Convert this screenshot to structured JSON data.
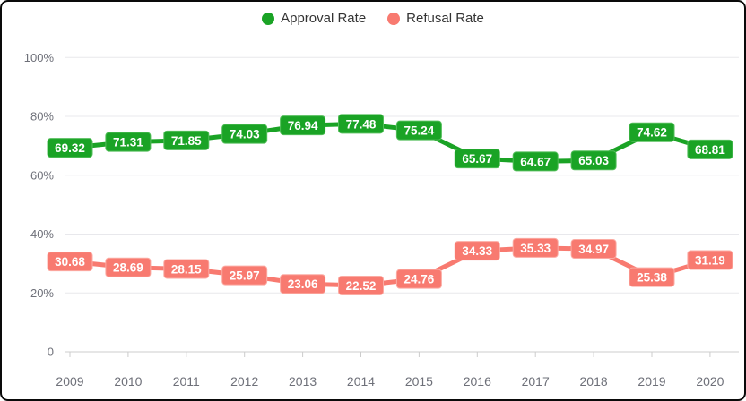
{
  "frame": {
    "background": "#ffffff",
    "border_color": "#0a0a0a"
  },
  "legend": {
    "position": "top-center",
    "items": [
      {
        "label": "Approval Rate",
        "color": "#1aa325"
      },
      {
        "label": "Refusal Rate",
        "color": "#f87a70"
      }
    ]
  },
  "chart_data": {
    "type": "line",
    "title": "",
    "xlabel": "",
    "ylabel": "",
    "categories": [
      "2009",
      "2010",
      "2011",
      "2012",
      "2013",
      "2014",
      "2015",
      "2016",
      "2017",
      "2018",
      "2019",
      "2020"
    ],
    "series": [
      {
        "name": "Approval Rate",
        "color": "#1aa325",
        "label_border_color": "#52bd59",
        "label_text_color": "#ffffff",
        "values": [
          69.32,
          71.31,
          71.85,
          74.03,
          76.94,
          77.48,
          75.24,
          65.67,
          64.67,
          65.03,
          74.62,
          68.81
        ]
      },
      {
        "name": "Refusal Rate",
        "color": "#f87a70",
        "label_border_color": "#fbaba3",
        "label_text_color": "#ffffff",
        "values": [
          30.68,
          28.69,
          28.15,
          25.97,
          23.06,
          22.52,
          24.76,
          34.33,
          35.33,
          34.97,
          25.38,
          31.19
        ]
      }
    ],
    "ylim": [
      0,
      100
    ],
    "y_ticks": [
      {
        "value": 0,
        "label": "0"
      },
      {
        "value": 20,
        "label": "20%"
      },
      {
        "value": 40,
        "label": "40%"
      },
      {
        "value": 60,
        "label": "60%"
      },
      {
        "value": 80,
        "label": "80%"
      },
      {
        "value": 100,
        "label": "100%"
      }
    ],
    "grid": true,
    "data_labels": true,
    "legend_position": "top"
  },
  "axis_style": {
    "tick_label_color": "#6e7079",
    "grid_color": "#e8e8ec",
    "axis_line_color": "#cccccc"
  }
}
